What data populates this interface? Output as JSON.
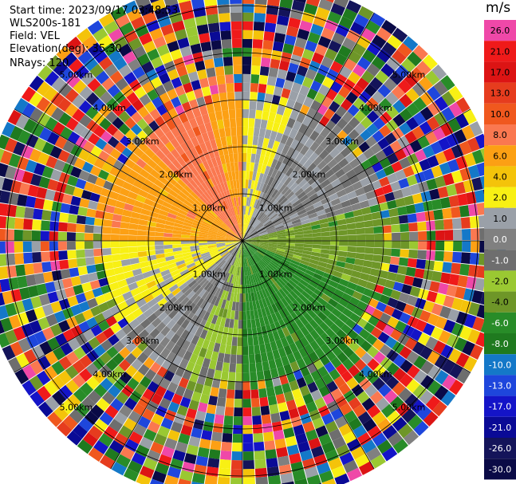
{
  "header": {
    "start_time": "Start time: 2023/09/17 03:48:53",
    "instrument": "WLS200s-181",
    "field": "Field: VEL",
    "elevation": "Elevation(deg): 35.30",
    "nrays": "NRays: 120"
  },
  "chart_data": {
    "type": "heatmap",
    "projection": "polar-ppi",
    "field": "VEL",
    "units": "m/s",
    "elevation_deg": 35.3,
    "nrays": 120,
    "range_rings_km": [
      1.0,
      2.0,
      3.0,
      4.0,
      5.0
    ],
    "range_ring_labels": [
      "1.00km",
      "2.00km",
      "3.00km",
      "4.00km",
      "5.00km"
    ],
    "max_range_km": 5.6,
    "valid_data_range_km": 3.1,
    "colorbar": {
      "ticks": [
        "26.0",
        "21.0",
        "17.0",
        "13.0",
        "10.0",
        "8.0",
        "6.0",
        "4.0",
        "2.0",
        "1.0",
        "0.0",
        "-1.0",
        "-2.0",
        "-4.0",
        "-6.0",
        "-8.0",
        "-10.0",
        "-13.0",
        "-17.0",
        "-21.0",
        "-26.0",
        "-30.0"
      ],
      "colors": [
        "#ef48a8",
        "#ef1a1a",
        "#dc1414",
        "#e63c1e",
        "#f0581e",
        "#fa7850",
        "#fca014",
        "#f4c30a",
        "#f8f014",
        "#9aa0a8",
        "#808080",
        "#6e6e6e",
        "#9ac832",
        "#6e9628",
        "#288c28",
        "#1f7a1f",
        "#1478c8",
        "#1e46dc",
        "#1414c8",
        "#0a0a96",
        "#14145a",
        "#0a0a46"
      ]
    },
    "sectors": [
      {
        "azimuth_from": 270,
        "azimuth_to": 360,
        "velocity_ms": 6.0
      },
      {
        "azimuth_from": 315,
        "azimuth_to": 345,
        "velocity_ms": 8.0
      },
      {
        "azimuth_from": 230,
        "azimuth_to": 270,
        "velocity_ms": 2.0
      },
      {
        "azimuth_from": 0,
        "azimuth_to": 20,
        "velocity_ms": 2.0
      },
      {
        "azimuth_from": 20,
        "azimuth_to": 75,
        "velocity_ms": 0.0
      },
      {
        "azimuth_from": 75,
        "azimuth_to": 110,
        "velocity_ms": -4.0
      },
      {
        "azimuth_from": 110,
        "azimuth_to": 180,
        "velocity_ms": -6.0
      },
      {
        "azimuth_from": 180,
        "azimuth_to": 205,
        "velocity_ms": -2.0
      },
      {
        "azimuth_from": 205,
        "azimuth_to": 230,
        "velocity_ms": 0.0
      }
    ]
  }
}
